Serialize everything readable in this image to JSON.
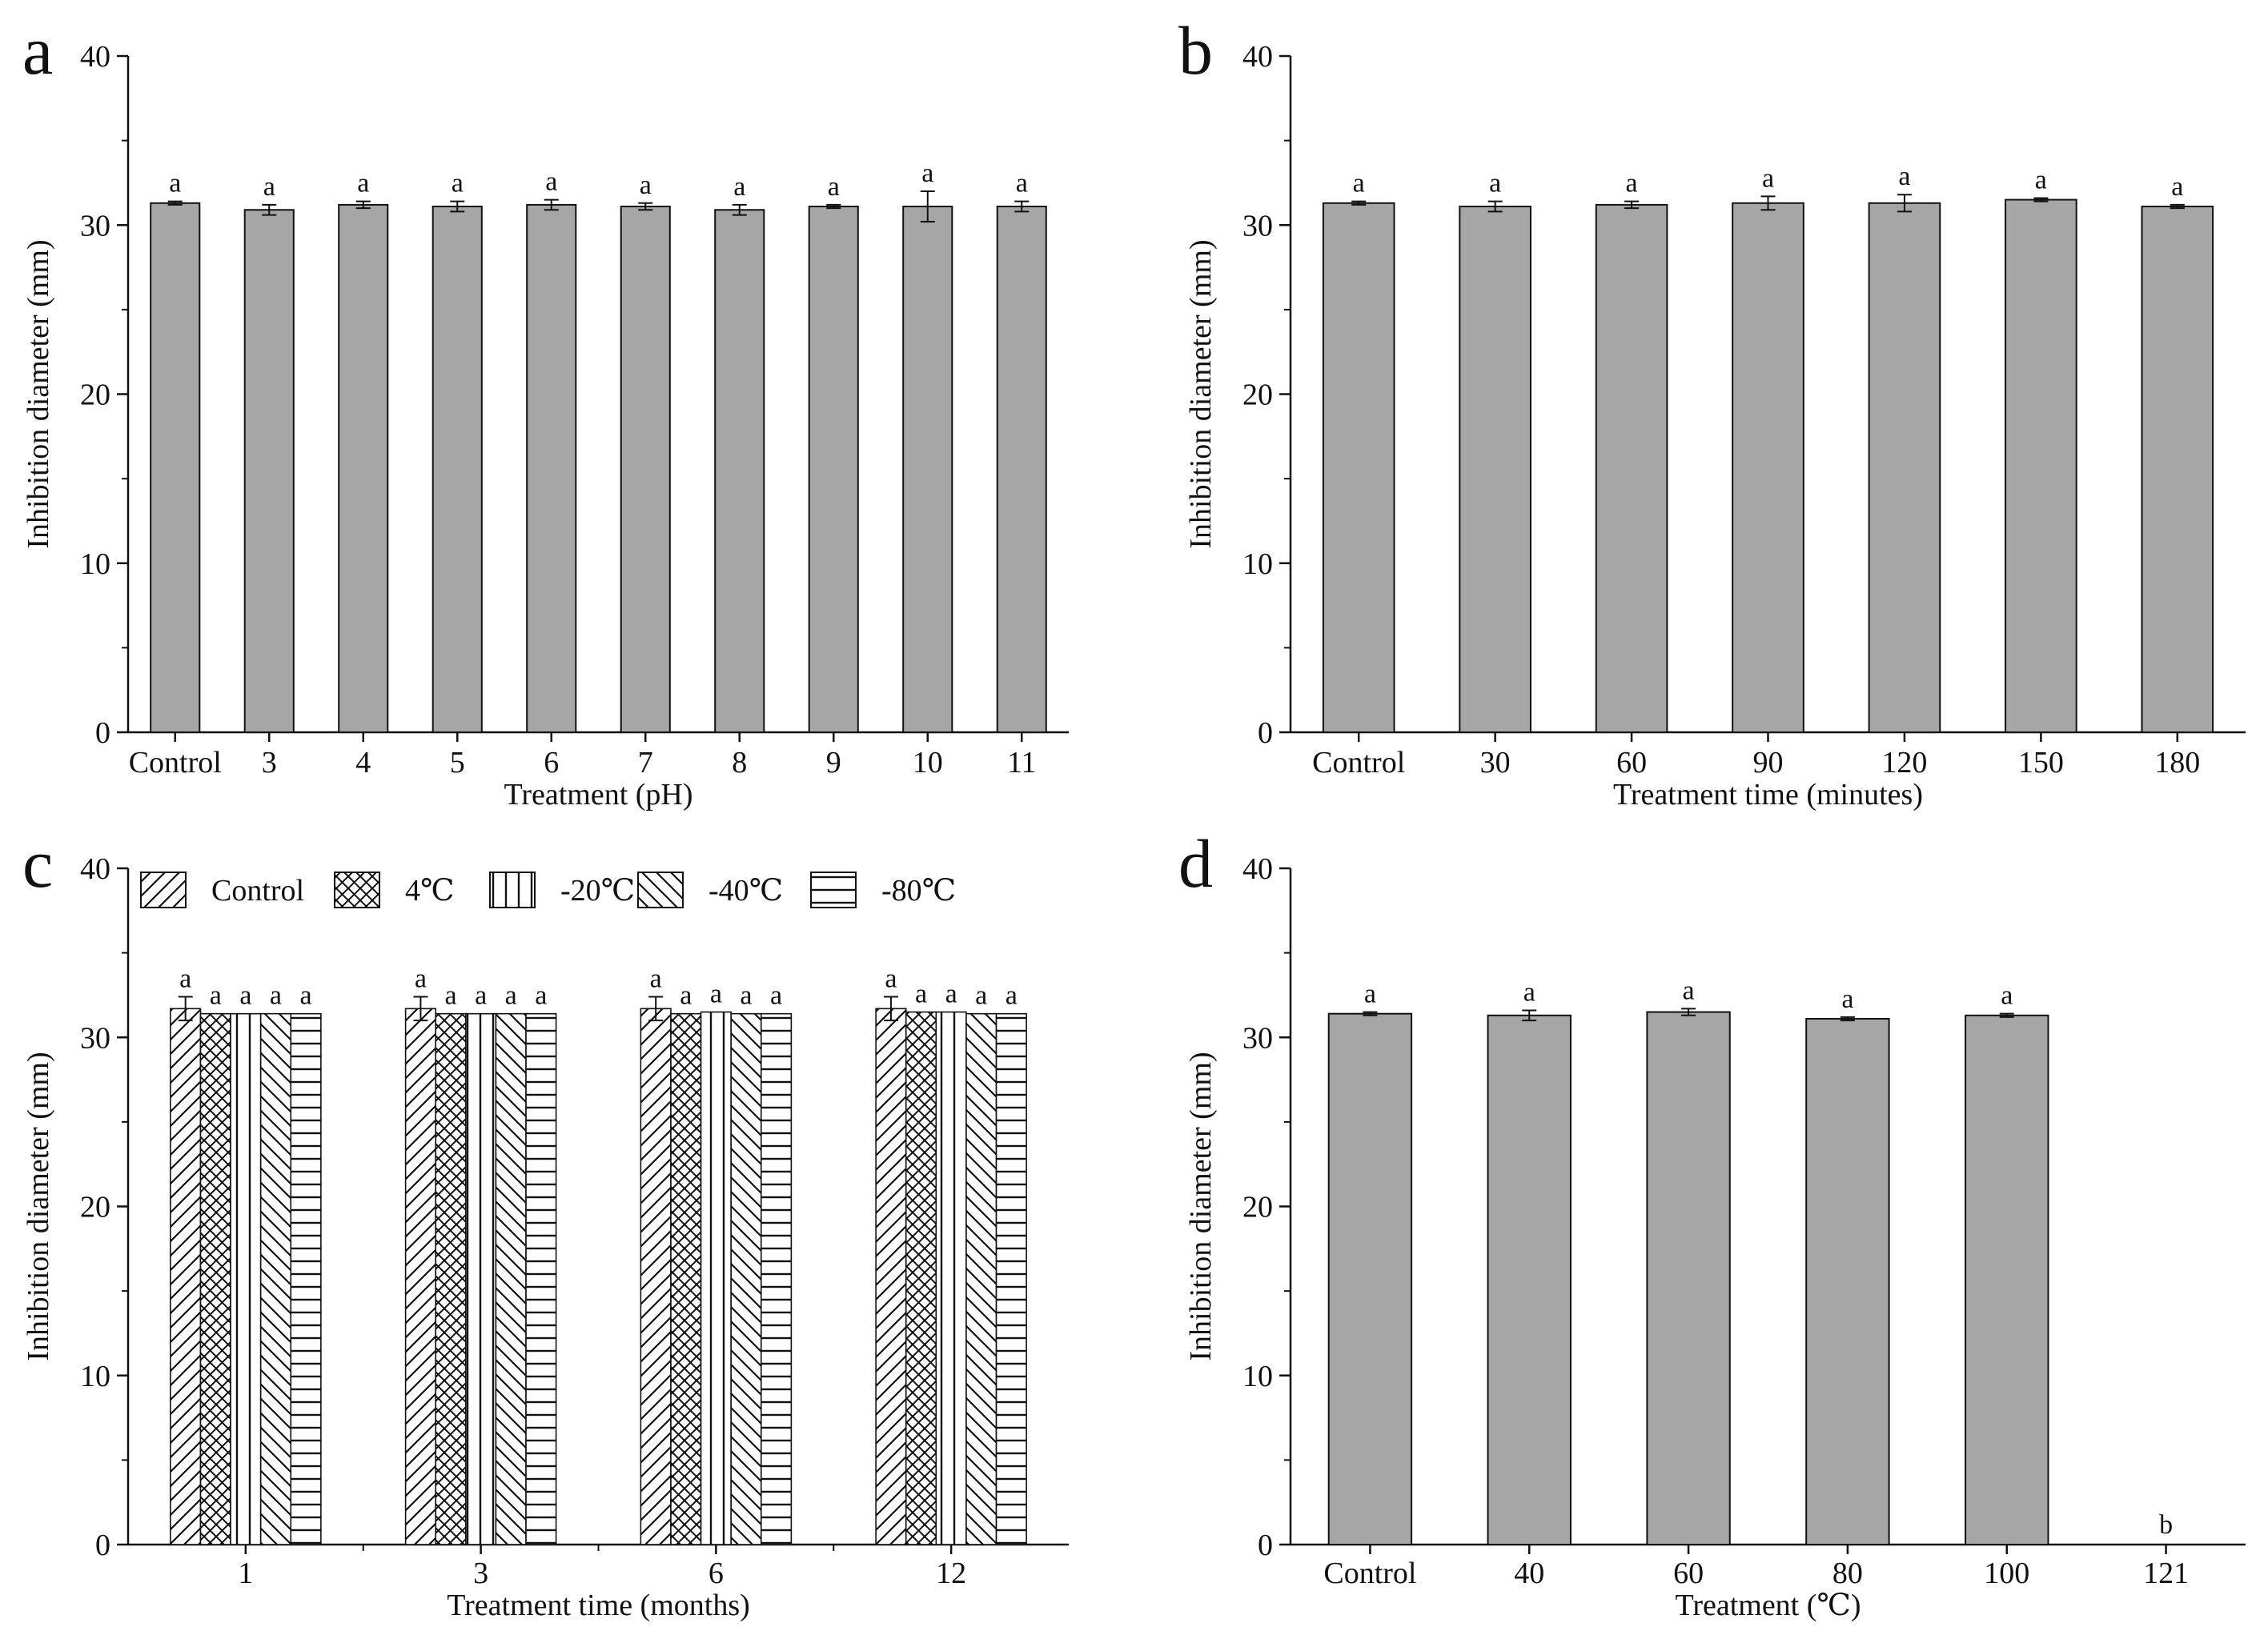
{
  "colors": {
    "bar_fill": "#a6a6a6",
    "ink": "#111111",
    "background": "#ffffff"
  },
  "chart_data": [
    {
      "panel": "a",
      "type": "bar",
      "categories": [
        "Control",
        "3",
        "4",
        "5",
        "6",
        "7",
        "8",
        "9",
        "10",
        "11"
      ],
      "values": [
        31.3,
        30.9,
        31.2,
        31.1,
        31.2,
        31.1,
        30.9,
        31.1,
        31.1,
        31.1
      ],
      "errors": [
        0.1,
        0.3,
        0.2,
        0.3,
        0.3,
        0.2,
        0.3,
        0.1,
        0.9,
        0.3
      ],
      "significance": [
        "a",
        "a",
        "a",
        "a",
        "a",
        "a",
        "a",
        "a",
        "a",
        "a"
      ],
      "xlabel": "Treatment (pH)",
      "ylabel": "Inhibition diameter (mm)",
      "ylim": [
        0,
        40
      ],
      "yticks": [
        0,
        10,
        20,
        30,
        40
      ]
    },
    {
      "panel": "b",
      "type": "bar",
      "categories": [
        "Control",
        "30",
        "60",
        "90",
        "120",
        "150",
        "180"
      ],
      "values": [
        31.3,
        31.1,
        31.2,
        31.3,
        31.3,
        31.5,
        31.1
      ],
      "errors": [
        0.1,
        0.3,
        0.2,
        0.4,
        0.5,
        0.1,
        0.1
      ],
      "significance": [
        "a",
        "a",
        "a",
        "a",
        "a",
        "a",
        "a"
      ],
      "xlabel": "Treatment time (minutes)",
      "ylabel": "Inhibition diameter (mm)",
      "ylim": [
        0,
        40
      ],
      "yticks": [
        0,
        10,
        20,
        30,
        40
      ]
    },
    {
      "panel": "c",
      "type": "bar",
      "grouped": true,
      "categories": [
        "1",
        "3",
        "6",
        "12"
      ],
      "series": [
        {
          "name": "Control",
          "pattern": "diag-right",
          "values": [
            31.7,
            31.7,
            31.7,
            31.7
          ],
          "errors": [
            0.7,
            0.7,
            0.7,
            0.7
          ]
        },
        {
          "name": "4℃",
          "pattern": "cross",
          "values": [
            31.4,
            31.4,
            31.4,
            31.5
          ],
          "errors": [
            0,
            0,
            0,
            0
          ]
        },
        {
          "name": "-20℃",
          "pattern": "vertical",
          "values": [
            31.4,
            31.4,
            31.5,
            31.5
          ],
          "errors": [
            0,
            0,
            0,
            0
          ]
        },
        {
          "name": "-40℃",
          "pattern": "diag-left",
          "values": [
            31.4,
            31.4,
            31.4,
            31.4
          ],
          "errors": [
            0,
            0,
            0,
            0
          ]
        },
        {
          "name": "-80℃",
          "pattern": "horizontal",
          "values": [
            31.4,
            31.4,
            31.4,
            31.4
          ],
          "errors": [
            0,
            0,
            0,
            0
          ]
        }
      ],
      "significance": "a",
      "legend_position": "top-left",
      "xlabel": "Treatment time (months)",
      "ylabel": "Inhibition diameter (mm)",
      "ylim": [
        0,
        40
      ],
      "yticks": [
        0,
        10,
        20,
        30,
        40
      ]
    },
    {
      "panel": "d",
      "type": "bar",
      "categories": [
        "Control",
        "40",
        "60",
        "80",
        "100",
        "121"
      ],
      "values": [
        31.4,
        31.3,
        31.5,
        31.1,
        31.3,
        0
      ],
      "errors": [
        0.1,
        0.3,
        0.2,
        0.1,
        0.1,
        0
      ],
      "significance": [
        "a",
        "a",
        "a",
        "a",
        "a",
        "b"
      ],
      "xlabel": "Treatment (℃)",
      "ylabel": "Inhibition diameter (mm)",
      "ylim": [
        0,
        40
      ],
      "yticks": [
        0,
        10,
        20,
        30,
        40
      ]
    }
  ]
}
